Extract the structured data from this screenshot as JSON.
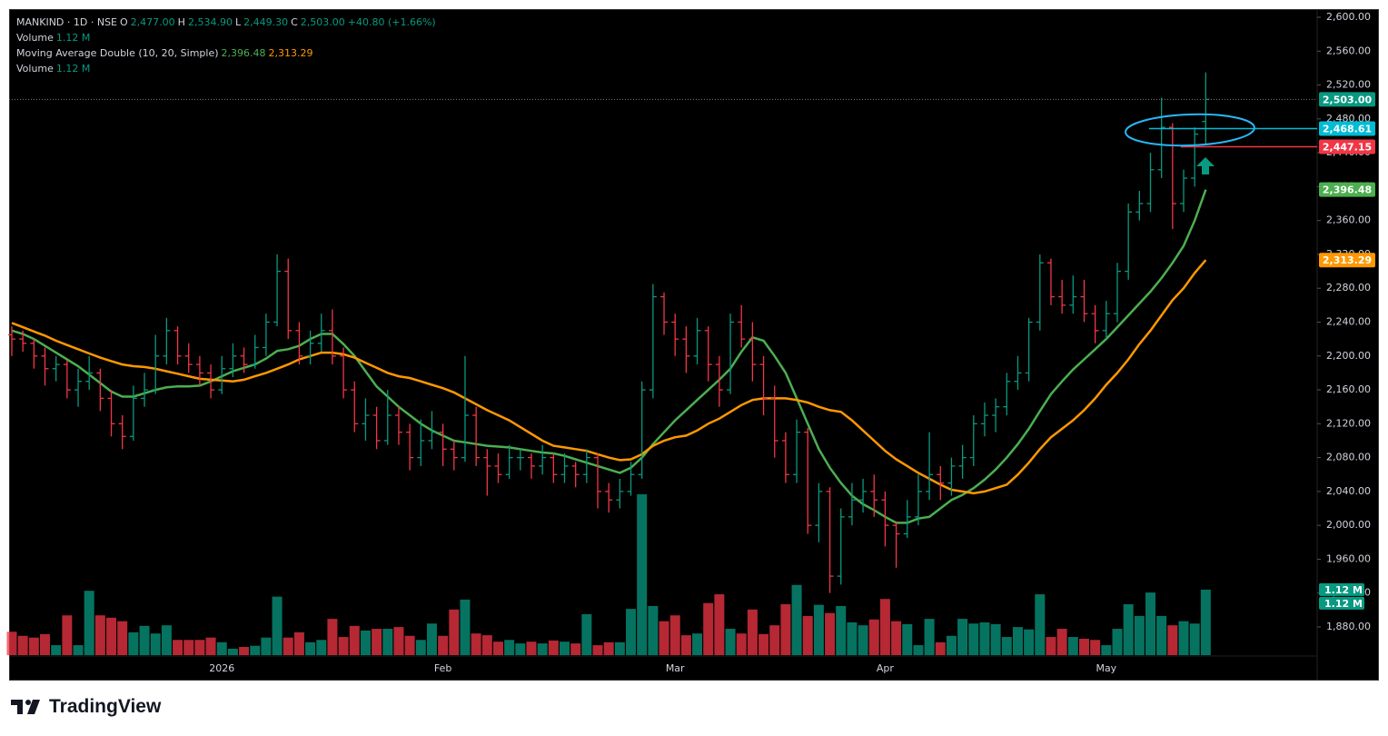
{
  "header": {
    "symbol": "MANKIND · 1D · NSE",
    "o_key": "O",
    "o": "2,477.00",
    "h_key": "H",
    "h": "2,534.90",
    "l_key": "L",
    "l": "2,449.30",
    "c_key": "C",
    "c": "2,503.00",
    "change": "+40.80 (+1.66%)",
    "volume_name": "Volume",
    "volume": "1.12 M",
    "ma_name": "Moving Average Double (10, 20, Simple)",
    "ma1": "2,396.48",
    "ma2": "2,313.29",
    "volume2_name": "Volume",
    "volume2": "1.12 M"
  },
  "footer": {
    "brand": "TradingView"
  },
  "chart_data": {
    "type": "ohlc",
    "up_color": "#089981",
    "down_color": "#f23645",
    "grid": false,
    "categories": [
      null,
      null,
      null,
      null,
      null,
      null,
      null,
      null,
      null,
      null,
      null,
      null,
      null,
      null,
      null,
      null,
      null,
      null,
      null,
      "2026",
      null,
      null,
      null,
      null,
      null,
      null,
      null,
      null,
      null,
      null,
      null,
      null,
      null,
      null,
      null,
      null,
      null,
      null,
      null,
      "Feb",
      null,
      null,
      null,
      null,
      null,
      null,
      null,
      null,
      null,
      null,
      null,
      null,
      null,
      null,
      null,
      null,
      null,
      null,
      null,
      null,
      "Mar",
      null,
      null,
      null,
      null,
      null,
      null,
      null,
      null,
      null,
      null,
      null,
      null,
      null,
      null,
      null,
      null,
      null,
      null,
      "Apr",
      null,
      null,
      null,
      null,
      null,
      null,
      null,
      null,
      null,
      null,
      null,
      null,
      null,
      null,
      null,
      null,
      null,
      null,
      null,
      "May",
      null,
      null,
      null,
      null,
      null,
      null,
      null,
      null,
      null
    ],
    "open": [
      2225,
      2220,
      2215,
      2200,
      2185,
      2190,
      2160,
      2170,
      2180,
      2150,
      2120,
      2105,
      2150,
      2160,
      2200,
      2230,
      2200,
      2190,
      2180,
      2160,
      2185,
      2200,
      2190,
      2210,
      2240,
      2300,
      2230,
      2200,
      2215,
      2230,
      2200,
      2160,
      2120,
      2130,
      2100,
      2130,
      2110,
      2080,
      2100,
      2110,
      2090,
      2080,
      2130,
      2080,
      2070,
      2060,
      2080,
      2080,
      2070,
      2080,
      2060,
      2070,
      2060,
      2080,
      2040,
      2030,
      2040,
      2060,
      2160,
      2270,
      2240,
      2220,
      2200,
      2230,
      2190,
      2160,
      2240,
      2220,
      2190,
      2150,
      2100,
      2060,
      2110,
      2000,
      2040,
      1940,
      2010,
      2030,
      2040,
      2030,
      2000,
      1990,
      2010,
      2040,
      2060,
      2050,
      2070,
      2080,
      2120,
      2130,
      2140,
      2170,
      2180,
      2240,
      2310,
      2270,
      2260,
      2270,
      2250,
      2230,
      2250,
      2300,
      2370,
      2380,
      2420,
      2470,
      2380,
      2410,
      2477
    ],
    "high": [
      2235,
      2230,
      2220,
      2210,
      2200,
      2195,
      2185,
      2200,
      2185,
      2160,
      2130,
      2165,
      2180,
      2225,
      2245,
      2235,
      2215,
      2200,
      2190,
      2200,
      2215,
      2210,
      2225,
      2250,
      2320,
      2315,
      2240,
      2230,
      2250,
      2255,
      2210,
      2170,
      2150,
      2140,
      2160,
      2140,
      2120,
      2125,
      2135,
      2120,
      2100,
      2200,
      2140,
      2090,
      2085,
      2095,
      2090,
      2085,
      2095,
      2085,
      2085,
      2075,
      2090,
      2085,
      2050,
      2055,
      2075,
      2170,
      2285,
      2275,
      2250,
      2235,
      2245,
      2235,
      2200,
      2250,
      2260,
      2240,
      2200,
      2165,
      2110,
      2125,
      2115,
      2050,
      2045,
      2020,
      2050,
      2055,
      2060,
      2040,
      2005,
      2030,
      2060,
      2110,
      2070,
      2080,
      2095,
      2130,
      2145,
      2150,
      2180,
      2200,
      2245,
      2320,
      2315,
      2290,
      2295,
      2290,
      2260,
      2265,
      2310,
      2380,
      2395,
      2440,
      2505,
      2475,
      2420,
      2470,
      2534.9
    ],
    "low": [
      2200,
      2205,
      2185,
      2165,
      2170,
      2150,
      2140,
      2160,
      2135,
      2105,
      2090,
      2100,
      2140,
      2155,
      2190,
      2190,
      2180,
      2165,
      2150,
      2155,
      2175,
      2180,
      2185,
      2200,
      2235,
      2220,
      2190,
      2190,
      2205,
      2190,
      2150,
      2110,
      2100,
      2090,
      2095,
      2095,
      2065,
      2070,
      2090,
      2070,
      2065,
      2075,
      2070,
      2035,
      2050,
      2055,
      2065,
      2055,
      2060,
      2050,
      2050,
      2045,
      2050,
      2020,
      2015,
      2020,
      2035,
      2055,
      2150,
      2225,
      2200,
      2180,
      2190,
      2170,
      2140,
      2155,
      2210,
      2170,
      2130,
      2080,
      2050,
      2050,
      1990,
      1980,
      1920,
      1930,
      2000,
      2015,
      2010,
      1975,
      1950,
      1985,
      2000,
      2030,
      2030,
      2035,
      2055,
      2070,
      2105,
      2110,
      2130,
      2160,
      2170,
      2230,
      2260,
      2250,
      2250,
      2240,
      2215,
      2220,
      2240,
      2290,
      2360,
      2370,
      2410,
      2350,
      2370,
      2400,
      2449.3
    ],
    "close": [
      2220,
      2215,
      2200,
      2185,
      2190,
      2160,
      2170,
      2180,
      2150,
      2120,
      2105,
      2150,
      2160,
      2200,
      2230,
      2200,
      2190,
      2180,
      2160,
      2185,
      2200,
      2190,
      2210,
      2240,
      2300,
      2230,
      2200,
      2215,
      2230,
      2200,
      2160,
      2120,
      2130,
      2100,
      2130,
      2110,
      2080,
      2100,
      2110,
      2090,
      2080,
      2130,
      2080,
      2070,
      2060,
      2080,
      2080,
      2070,
      2080,
      2060,
      2070,
      2060,
      2080,
      2040,
      2030,
      2040,
      2060,
      2160,
      2270,
      2240,
      2220,
      2200,
      2230,
      2190,
      2160,
      2240,
      2220,
      2190,
      2150,
      2100,
      2060,
      2110,
      2000,
      2040,
      1940,
      2010,
      2030,
      2040,
      2030,
      2000,
      1990,
      2010,
      2040,
      2060,
      2050,
      2070,
      2080,
      2120,
      2130,
      2140,
      2170,
      2180,
      2240,
      2310,
      2270,
      2260,
      2270,
      2250,
      2230,
      2250,
      2300,
      2370,
      2380,
      2420,
      2470,
      2380,
      2410,
      2462,
      2503
    ],
    "moving_averages": {
      "series": [
        {
          "color": "#4caf50",
          "values": [
            2230,
            2226,
            2220,
            2212,
            2204,
            2196,
            2188,
            2178,
            2168,
            2158,
            2152,
            2152,
            2156,
            2160,
            2163,
            2164,
            2164,
            2165,
            2170,
            2176,
            2182,
            2186,
            2190,
            2197,
            2206,
            2208,
            2212,
            2220,
            2226,
            2226,
            2214,
            2200,
            2182,
            2164,
            2152,
            2140,
            2130,
            2120,
            2112,
            2106,
            2100,
            2098,
            2096,
            2094,
            2093,
            2092,
            2090,
            2088,
            2086,
            2085,
            2082,
            2078,
            2074,
            2070,
            2066,
            2062,
            2068,
            2080,
            2096,
            2110,
            2124,
            2136,
            2148,
            2160,
            2172,
            2185,
            2205,
            2222,
            2218,
            2200,
            2180,
            2150,
            2120,
            2090,
            2068,
            2050,
            2035,
            2025,
            2018,
            2010,
            2003,
            2003,
            2008,
            2010,
            2020,
            2030,
            2036,
            2044,
            2054,
            2066,
            2080,
            2096,
            2114,
            2135,
            2155,
            2170,
            2184,
            2196,
            2208,
            2220,
            2234,
            2248,
            2262,
            2276,
            2292,
            2310,
            2330,
            2360,
            2396.48
          ],
          "badge": "2,396.48"
        },
        {
          "color": "#ff9800",
          "values": [
            2239,
            2234,
            2229,
            2224,
            2218,
            2213,
            2208,
            2203,
            2198,
            2194,
            2190,
            2188,
            2187,
            2185,
            2182,
            2179,
            2176,
            2173,
            2172,
            2171,
            2170,
            2172,
            2176,
            2180,
            2185,
            2190,
            2196,
            2200,
            2204,
            2204,
            2202,
            2198,
            2192,
            2186,
            2180,
            2176,
            2174,
            2170,
            2166,
            2162,
            2157,
            2150,
            2143,
            2136,
            2130,
            2124,
            2116,
            2108,
            2100,
            2094,
            2092,
            2090,
            2088,
            2084,
            2080,
            2077,
            2078,
            2084,
            2094,
            2100,
            2104,
            2106,
            2112,
            2120,
            2126,
            2134,
            2142,
            2148,
            2150,
            2150,
            2150,
            2148,
            2145,
            2140,
            2136,
            2134,
            2124,
            2112,
            2100,
            2088,
            2078,
            2070,
            2062,
            2055,
            2048,
            2042,
            2040,
            2038,
            2040,
            2044,
            2048,
            2060,
            2074,
            2090,
            2104,
            2114,
            2124,
            2136,
            2150,
            2166,
            2180,
            2196,
            2214,
            2230,
            2248,
            2266,
            2280,
            2298,
            2313.29
          ],
          "badge": "2,313.29"
        }
      ]
    },
    "volume": {
      "values": [
        0.4,
        0.33,
        0.3,
        0.36,
        0.17,
        0.68,
        0.17,
        1.1,
        0.68,
        0.64,
        0.58,
        0.39,
        0.5,
        0.37,
        0.51,
        0.26,
        0.26,
        0.26,
        0.3,
        0.22,
        0.11,
        0.14,
        0.16,
        0.3,
        1.0,
        0.3,
        0.39,
        0.22,
        0.26,
        0.62,
        0.31,
        0.5,
        0.42,
        0.45,
        0.45,
        0.48,
        0.33,
        0.26,
        0.54,
        0.33,
        0.78,
        0.95,
        0.37,
        0.34,
        0.23,
        0.26,
        0.2,
        0.23,
        0.2,
        0.25,
        0.23,
        0.2,
        0.7,
        0.17,
        0.22,
        0.22,
        0.79,
        2.75,
        0.84,
        0.58,
        0.68,
        0.34,
        0.37,
        0.89,
        1.04,
        0.45,
        0.37,
        0.78,
        0.36,
        0.51,
        0.87,
        1.2,
        0.67,
        0.86,
        0.72,
        0.84,
        0.56,
        0.51,
        0.61,
        0.96,
        0.58,
        0.53,
        0.17,
        0.62,
        0.22,
        0.33,
        0.62,
        0.54,
        0.56,
        0.53,
        0.31,
        0.48,
        0.44,
        1.04,
        0.31,
        0.45,
        0.31,
        0.28,
        0.26,
        0.17,
        0.45,
        0.87,
        0.67,
        1.07,
        0.67,
        0.51,
        0.58,
        0.54,
        1.12
      ],
      "badges": [
        "1.12 M",
        "1.12 M"
      ]
    },
    "last_price_badge": "2,503.00",
    "horizontal_lines": [
      {
        "value": 2468.61,
        "label": "2,468.61",
        "color": "#00bcd4"
      },
      {
        "value": 2447.15,
        "label": "2,447.15",
        "color": "#f23645"
      }
    ],
    "ylim": [
      1880,
      2600
    ],
    "yticks": [
      {
        "value": 1880,
        "label": "1,880.00"
      },
      {
        "value": 1920,
        "label": "1,920.00"
      },
      {
        "value": 1960,
        "label": "1,960.00"
      },
      {
        "value": 2000,
        "label": "2,000.00"
      },
      {
        "value": 2040,
        "label": "2,040.00"
      },
      {
        "value": 2080,
        "label": "2,080.00"
      },
      {
        "value": 2120,
        "label": "2,120.00"
      },
      {
        "value": 2160,
        "label": "2,160.00"
      },
      {
        "value": 2200,
        "label": "2,200.00"
      },
      {
        "value": 2240,
        "label": "2,240.00"
      },
      {
        "value": 2280,
        "label": "2,280.00"
      },
      {
        "value": 2320,
        "label": "2,320.00"
      },
      {
        "value": 2360,
        "label": "2,360.00"
      },
      {
        "value": 2400,
        "label": "2,400.00"
      },
      {
        "value": 2440,
        "label": "2,440.00"
      },
      {
        "value": 2480,
        "label": "2,480.00"
      },
      {
        "value": 2520,
        "label": "2,520.00"
      },
      {
        "value": 2560,
        "label": "2,560.00"
      },
      {
        "value": 2600,
        "label": "2,600.00"
      }
    ]
  }
}
